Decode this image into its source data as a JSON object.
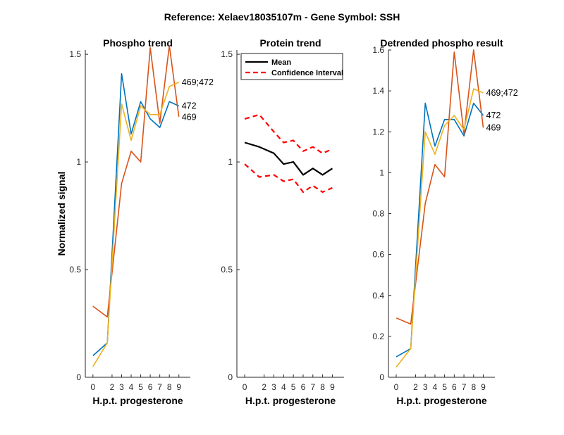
{
  "figure_title": "Reference:  Xelaev18035107m - Gene Symbol:  SSH",
  "colors": {
    "s472": "#0072BD",
    "s469": "#D95319",
    "s469_472": "#EDB120",
    "mean": "#000000",
    "ci": "#FF0000",
    "axis": "#262626"
  },
  "chart_data": [
    {
      "type": "line",
      "title": "Phospho trend",
      "xlabel": "H.p.t. progesterone",
      "ylabel": "Normalized signal",
      "xlim": [
        -0.8,
        10.2
      ],
      "ylim": [
        0,
        1.52
      ],
      "xticks": [
        0,
        2,
        3,
        4,
        5,
        6,
        7,
        8,
        9
      ],
      "xtick_labels": [
        "0",
        "2",
        "3",
        "4",
        "5",
        "6",
        "7",
        "8",
        "9"
      ],
      "yticks": [
        0,
        0.5,
        1,
        1.5
      ],
      "ytick_labels": [
        "0",
        "0.5",
        "1",
        "1.5"
      ],
      "x": [
        0,
        1.5,
        3,
        4,
        5,
        6,
        7,
        8,
        9
      ],
      "series": [
        {
          "name": "472",
          "color_key": "s472",
          "values": [
            0.1,
            0.16,
            1.41,
            1.13,
            1.28,
            1.2,
            1.16,
            1.28,
            1.26
          ],
          "label": "472"
        },
        {
          "name": "469",
          "color_key": "s469",
          "values": [
            0.33,
            0.28,
            0.9,
            1.05,
            1.0,
            1.53,
            1.18,
            1.54,
            1.21
          ],
          "label": "469"
        },
        {
          "name": "469;472",
          "color_key": "s469_472",
          "values": [
            0.05,
            0.16,
            1.27,
            1.1,
            1.26,
            1.22,
            1.22,
            1.35,
            1.37
          ],
          "label": "469;472"
        }
      ]
    },
    {
      "type": "line",
      "title": "Protein trend",
      "xlabel": "H.p.t. progesterone",
      "ylabel": "",
      "xlim": [
        -0.8,
        10.2
      ],
      "ylim": [
        0,
        1.52
      ],
      "xticks": [
        0,
        2,
        3,
        4,
        5,
        6,
        7,
        8,
        9
      ],
      "xtick_labels": [
        "0",
        "2",
        "3",
        "4",
        "5",
        "6",
        "7",
        "8",
        "9"
      ],
      "yticks": [
        0,
        0.5,
        1,
        1.5
      ],
      "ytick_labels": [
        "0",
        "0.5",
        "1",
        "1.5"
      ],
      "x": [
        0,
        1.5,
        3,
        4,
        5,
        6,
        7,
        8,
        9
      ],
      "legend": [
        {
          "label": "Mean",
          "style": "solid",
          "color_key": "mean"
        },
        {
          "label": "Confidence Interval",
          "style": "dashed",
          "color_key": "ci"
        }
      ],
      "legend_position": "top-left",
      "series": [
        {
          "name": "Mean",
          "color_key": "mean",
          "style": "solid",
          "values": [
            1.09,
            1.07,
            1.04,
            0.99,
            1.0,
            0.94,
            0.97,
            0.94,
            0.97
          ]
        },
        {
          "name": "Upper CI",
          "color_key": "ci",
          "style": "dashed",
          "values": [
            1.2,
            1.22,
            1.14,
            1.09,
            1.1,
            1.05,
            1.07,
            1.04,
            1.06
          ]
        },
        {
          "name": "Lower CI",
          "color_key": "ci",
          "style": "dashed",
          "values": [
            0.99,
            0.93,
            0.94,
            0.91,
            0.92,
            0.86,
            0.89,
            0.86,
            0.88
          ]
        }
      ]
    },
    {
      "type": "line",
      "title": "Detrended phospho result",
      "xlabel": "H.p.t. progesterone",
      "ylabel": "",
      "xlim": [
        -0.8,
        10.2
      ],
      "ylim": [
        0,
        1.6
      ],
      "xticks": [
        0,
        2,
        3,
        4,
        5,
        6,
        7,
        8,
        9
      ],
      "xtick_labels": [
        "0",
        "2",
        "3",
        "4",
        "5",
        "6",
        "7",
        "8",
        "9"
      ],
      "yticks": [
        0,
        0.2,
        0.4,
        0.6,
        0.8,
        1,
        1.2,
        1.4,
        1.6
      ],
      "ytick_labels": [
        "0",
        "0.2",
        "0.4",
        "0.6",
        "0.8",
        "1",
        "1.2",
        "1.4",
        "1.6"
      ],
      "x": [
        0,
        1.5,
        3,
        4,
        5,
        6,
        7,
        8,
        9
      ],
      "series": [
        {
          "name": "472",
          "color_key": "s472",
          "values": [
            0.1,
            0.14,
            1.34,
            1.13,
            1.26,
            1.26,
            1.18,
            1.34,
            1.28
          ],
          "label": "472"
        },
        {
          "name": "469",
          "color_key": "s469",
          "values": [
            0.29,
            0.26,
            0.85,
            1.04,
            0.98,
            1.59,
            1.19,
            1.6,
            1.22
          ],
          "label": "469"
        },
        {
          "name": "469;472",
          "color_key": "s469_472",
          "values": [
            0.05,
            0.14,
            1.2,
            1.09,
            1.23,
            1.28,
            1.21,
            1.41,
            1.39
          ],
          "label": "469;472"
        }
      ]
    }
  ]
}
